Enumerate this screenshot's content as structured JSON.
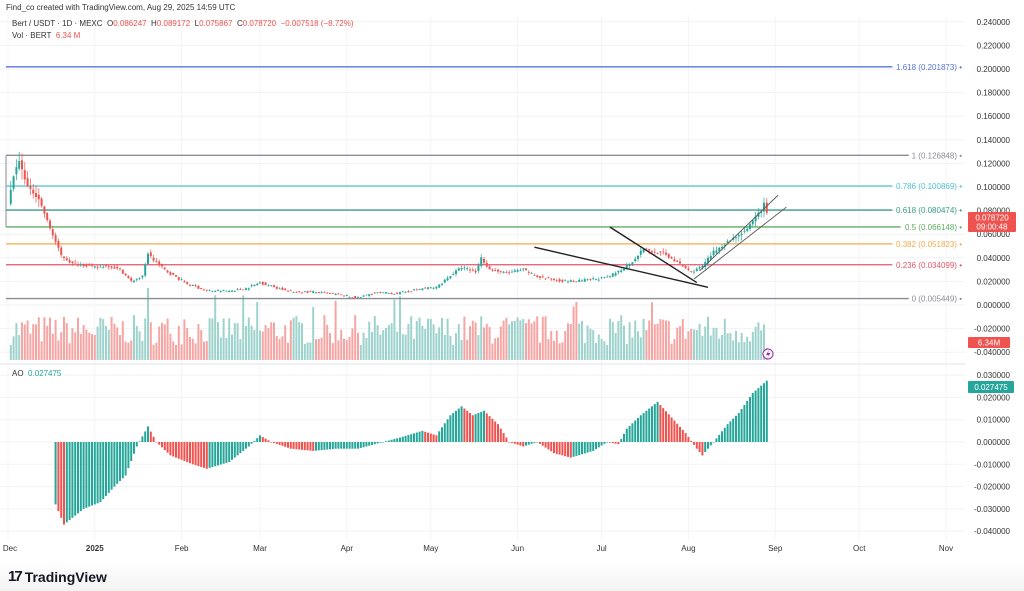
{
  "header": {
    "credit": "Find_co created with TradingView.com, Aug 29, 2025 14:59 UTC",
    "symbol": "Bert / USDT · 1D · MEXC",
    "open_label": "O",
    "open": "0.086247",
    "high_label": "H",
    "high": "0.089172",
    "low_label": "L",
    "low": "0.075867",
    "close_label": "C",
    "close": "0.078720",
    "change": "−0.007518 (−8.72%)",
    "vol_label": "Vol · BERT",
    "vol_value": "6.34 M"
  },
  "ao": {
    "label": "AO",
    "value": "0.027475"
  },
  "tags": {
    "price": "0.078720",
    "countdown": "09:00:48",
    "volume": "6.34M",
    "ao": "0.027475"
  },
  "footer": {
    "logo_mark": "17",
    "brand": "TradingView"
  },
  "colors": {
    "up": "#26a69a",
    "down": "#ef5350",
    "vol_up": "#9ed3cd",
    "vol_down": "#f5a6a4"
  },
  "chart_data": [
    {
      "type": "candlestick",
      "title": "Bert / USDT · 1D · MEXC",
      "y_ticks": [
        "0.240000",
        "0.220000",
        "0.200000",
        "0.180000",
        "0.160000",
        "0.140000",
        "0.120000",
        "0.100000",
        "0.080000",
        "0.060000",
        "0.040000",
        "0.020000",
        "0.000000",
        "-0.020000",
        "-0.040000"
      ],
      "ylim": [
        -0.04,
        0.24
      ],
      "x_ticks": [
        "Dec",
        "2025",
        "Feb",
        "Mar",
        "Apr",
        "May",
        "Jun",
        "Jul",
        "Aug",
        "Sep",
        "Oct",
        "Nov"
      ],
      "x_tick_dates": [
        "2024-12-01",
        "2025-01-01",
        "2025-02-01",
        "2025-03-01",
        "2025-04-01",
        "2025-05-01",
        "2025-06-01",
        "2025-07-01",
        "2025-08-01",
        "2025-09-01",
        "2025-10-01",
        "2025-11-01"
      ],
      "close_keypoints": [
        [
          "2024-12-01",
          0.085
        ],
        [
          "2024-12-03",
          0.11
        ],
        [
          "2024-12-05",
          0.122
        ],
        [
          "2024-12-08",
          0.1
        ],
        [
          "2024-12-12",
          0.09
        ],
        [
          "2024-12-16",
          0.065
        ],
        [
          "2024-12-20",
          0.042
        ],
        [
          "2024-12-24",
          0.035
        ],
        [
          "2024-12-28",
          0.034
        ],
        [
          "2025-01-01",
          0.032
        ],
        [
          "2025-01-06",
          0.033
        ],
        [
          "2025-01-10",
          0.03
        ],
        [
          "2025-01-14",
          0.02
        ],
        [
          "2025-01-18",
          0.024
        ],
        [
          "2025-01-20",
          0.044
        ],
        [
          "2025-01-22",
          0.038
        ],
        [
          "2025-01-27",
          0.028
        ],
        [
          "2025-02-03",
          0.018
        ],
        [
          "2025-02-10",
          0.012
        ],
        [
          "2025-02-18",
          0.012
        ],
        [
          "2025-02-24",
          0.014
        ],
        [
          "2025-03-01",
          0.019
        ],
        [
          "2025-03-05",
          0.016
        ],
        [
          "2025-03-12",
          0.011
        ],
        [
          "2025-03-20",
          0.011
        ],
        [
          "2025-03-28",
          0.009
        ],
        [
          "2025-04-05",
          0.006
        ],
        [
          "2025-04-10",
          0.01
        ],
        [
          "2025-04-20",
          0.01
        ],
        [
          "2025-04-28",
          0.014
        ],
        [
          "2025-05-03",
          0.015
        ],
        [
          "2025-05-08",
          0.025
        ],
        [
          "2025-05-12",
          0.032
        ],
        [
          "2025-05-17",
          0.028
        ],
        [
          "2025-05-19",
          0.04
        ],
        [
          "2025-05-22",
          0.03
        ],
        [
          "2025-05-28",
          0.027
        ],
        [
          "2025-06-03",
          0.03
        ],
        [
          "2025-06-08",
          0.024
        ],
        [
          "2025-06-15",
          0.021
        ],
        [
          "2025-06-22",
          0.02
        ],
        [
          "2025-06-28",
          0.022
        ],
        [
          "2025-07-03",
          0.023
        ],
        [
          "2025-07-08",
          0.03
        ],
        [
          "2025-07-12",
          0.037
        ],
        [
          "2025-07-16",
          0.048
        ],
        [
          "2025-07-19",
          0.045
        ],
        [
          "2025-07-23",
          0.044
        ],
        [
          "2025-07-28",
          0.036
        ],
        [
          "2025-08-02",
          0.028
        ],
        [
          "2025-08-06",
          0.033
        ],
        [
          "2025-08-10",
          0.045
        ],
        [
          "2025-08-14",
          0.052
        ],
        [
          "2025-08-18",
          0.058
        ],
        [
          "2025-08-22",
          0.064
        ],
        [
          "2025-08-26",
          0.078
        ],
        [
          "2025-08-27",
          0.08
        ],
        [
          "2025-08-28",
          0.0862
        ],
        [
          "2025-08-29",
          0.0787
        ]
      ],
      "fib_levels": [
        {
          "label": "1.618 (0.201873)",
          "value": 0.201873,
          "color": "#5677d6"
        },
        {
          "label": "1 (0.126848)",
          "value": 0.126848,
          "color": "#8a8d96"
        },
        {
          "label": "0.786 (0.100869)",
          "value": 0.100869,
          "color": "#4fc3d3"
        },
        {
          "label": "0.618 (0.080474)",
          "value": 0.080474,
          "color": "#3a9e8a"
        },
        {
          "label": "0.5 (0.066148)",
          "value": 0.066148,
          "color": "#5fae62"
        },
        {
          "label": "0.382 (0.051823)",
          "value": 0.051823,
          "color": "#f5a948"
        },
        {
          "label": "0.236 (0.034099)",
          "value": 0.034099,
          "color": "#e5566a"
        },
        {
          "label": "0 (0.005449)",
          "value": 0.005449,
          "color": "#8a8d96"
        }
      ],
      "trendlines": [
        {
          "name": "wedge-lower",
          "from": [
            "2025-06-07",
            0.049
          ],
          "to": [
            "2025-08-08",
            0.015
          ]
        },
        {
          "name": "wedge-upper",
          "from": [
            "2025-07-04",
            0.066
          ],
          "to": [
            "2025-08-04",
            0.019
          ]
        },
        {
          "name": "channel-lower",
          "from": [
            "2025-08-03",
            0.022
          ],
          "to": [
            "2025-09-05",
            0.083
          ]
        },
        {
          "name": "channel-upper",
          "from": [
            "2025-08-05",
            0.029
          ],
          "to": [
            "2025-09-02",
            0.093
          ]
        }
      ]
    },
    {
      "type": "bar",
      "title": "AO",
      "y_ticks": [
        "0.030000",
        "0.020000",
        "0.010000",
        "0.000000",
        "-0.010000",
        "-0.020000",
        "-0.030000",
        "-0.040000"
      ],
      "ylim": [
        -0.04,
        0.03
      ],
      "last_value": 0.027475,
      "keypoints": [
        [
          "2024-12-18",
          -0.028
        ],
        [
          "2024-12-21",
          -0.037
        ],
        [
          "2024-12-28",
          -0.03
        ],
        [
          "2025-01-03",
          -0.027
        ],
        [
          "2025-01-08",
          -0.02
        ],
        [
          "2025-01-12",
          -0.015
        ],
        [
          "2025-01-16",
          -0.002
        ],
        [
          "2025-01-20",
          0.007
        ],
        [
          "2025-01-23",
          0.0
        ],
        [
          "2025-01-28",
          -0.006
        ],
        [
          "2025-02-05",
          -0.01
        ],
        [
          "2025-02-10",
          -0.012
        ],
        [
          "2025-02-18",
          -0.009
        ],
        [
          "2025-02-25",
          -0.002
        ],
        [
          "2025-03-01",
          0.003
        ],
        [
          "2025-03-05",
          0.0
        ],
        [
          "2025-03-12",
          -0.003
        ],
        [
          "2025-03-20",
          -0.004
        ],
        [
          "2025-03-28",
          -0.003
        ],
        [
          "2025-04-05",
          -0.003
        ],
        [
          "2025-04-14",
          0.0
        ],
        [
          "2025-04-20",
          0.002
        ],
        [
          "2025-04-28",
          0.005
        ],
        [
          "2025-05-03",
          0.003
        ],
        [
          "2025-05-08",
          0.012
        ],
        [
          "2025-05-12",
          0.016
        ],
        [
          "2025-05-16",
          0.012
        ],
        [
          "2025-05-20",
          0.014
        ],
        [
          "2025-05-25",
          0.008
        ],
        [
          "2025-05-29",
          0.0
        ],
        [
          "2025-06-03",
          -0.002
        ],
        [
          "2025-06-08",
          0.0
        ],
        [
          "2025-06-14",
          -0.005
        ],
        [
          "2025-06-20",
          -0.007
        ],
        [
          "2025-06-28",
          -0.004
        ],
        [
          "2025-07-03",
          0.0
        ],
        [
          "2025-07-07",
          -0.001
        ],
        [
          "2025-07-10",
          0.006
        ],
        [
          "2025-07-15",
          0.012
        ],
        [
          "2025-07-21",
          0.018
        ],
        [
          "2025-07-26",
          0.011
        ],
        [
          "2025-07-31",
          0.004
        ],
        [
          "2025-08-04",
          -0.003
        ],
        [
          "2025-08-06",
          -0.006
        ],
        [
          "2025-08-10",
          0.0
        ],
        [
          "2025-08-15",
          0.008
        ],
        [
          "2025-08-19",
          0.013
        ],
        [
          "2025-08-24",
          0.022
        ],
        [
          "2025-08-29",
          0.027475
        ]
      ]
    }
  ]
}
